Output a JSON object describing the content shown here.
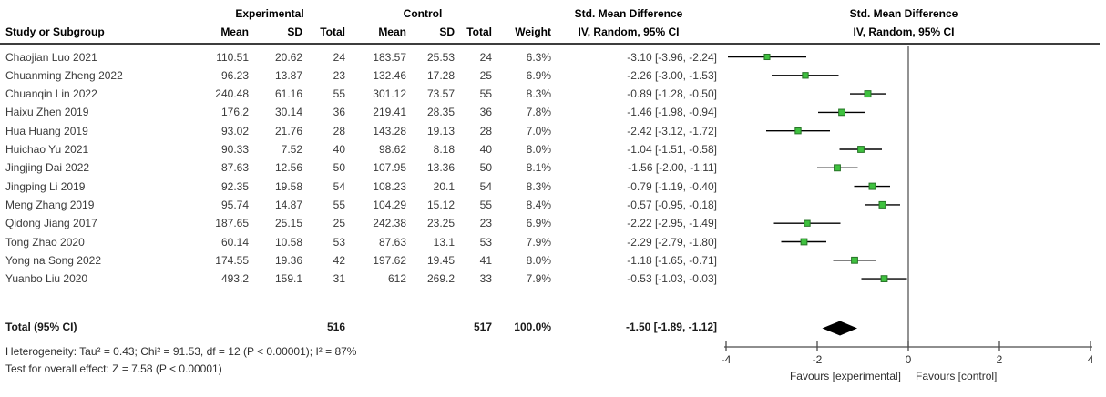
{
  "header": {
    "group_experimental": "Experimental",
    "group_control": "Control",
    "smd_left": "Std. Mean Difference",
    "smd_right": "Std. Mean Difference",
    "col_study": "Study or Subgroup",
    "col_mean_exp": "Mean",
    "col_sd_exp": "SD",
    "col_total_exp": "Total",
    "col_mean_ctl": "Mean",
    "col_sd_ctl": "SD",
    "col_total_ctl": "Total",
    "col_weight": "Weight",
    "ci_method_left": "IV, Random, 95% CI",
    "ci_method_right": "IV, Random, 95% CI"
  },
  "footer": {
    "heterogeneity": "Heterogeneity: Tau² = 0.43; Chi² = 91.53, df = 12 (P < 0.00001); I² = 87%",
    "overall_effect": "Test for overall effect: Z = 7.58 (P < 0.00001)"
  },
  "chart_data": {
    "type": "forest",
    "effect_measure": "Std. Mean Difference",
    "model": "IV, Random, 95% CI",
    "studies": [
      {
        "name": "Chaojian Luo 2021",
        "exp_mean": "110.51",
        "exp_sd": "20.62",
        "exp_total": "24",
        "ctl_mean": "183.57",
        "ctl_sd": "25.53",
        "ctl_total": "24",
        "weight": "6.3%",
        "weight_pct": 6.3,
        "ci_text": "-3.10 [-3.96, -2.24]",
        "est": -3.1,
        "lo": -3.96,
        "hi": -2.24
      },
      {
        "name": "Chuanming Zheng 2022",
        "exp_mean": "96.23",
        "exp_sd": "13.87",
        "exp_total": "23",
        "ctl_mean": "132.46",
        "ctl_sd": "17.28",
        "ctl_total": "25",
        "weight": "6.9%",
        "weight_pct": 6.9,
        "ci_text": "-2.26 [-3.00, -1.53]",
        "est": -2.26,
        "lo": -3.0,
        "hi": -1.53
      },
      {
        "name": "Chuanqin Lin 2022",
        "exp_mean": "240.48",
        "exp_sd": "61.16",
        "exp_total": "55",
        "ctl_mean": "301.12",
        "ctl_sd": "73.57",
        "ctl_total": "55",
        "weight": "8.3%",
        "weight_pct": 8.3,
        "ci_text": "-0.89 [-1.28, -0.50]",
        "est": -0.89,
        "lo": -1.28,
        "hi": -0.5
      },
      {
        "name": "Haixu Zhen 2019",
        "exp_mean": "176.2",
        "exp_sd": "30.14",
        "exp_total": "36",
        "ctl_mean": "219.41",
        "ctl_sd": "28.35",
        "ctl_total": "36",
        "weight": "7.8%",
        "weight_pct": 7.8,
        "ci_text": "-1.46 [-1.98, -0.94]",
        "est": -1.46,
        "lo": -1.98,
        "hi": -0.94
      },
      {
        "name": "Hua Huang 2019",
        "exp_mean": "93.02",
        "exp_sd": "21.76",
        "exp_total": "28",
        "ctl_mean": "143.28",
        "ctl_sd": "19.13",
        "ctl_total": "28",
        "weight": "7.0%",
        "weight_pct": 7.0,
        "ci_text": "-2.42 [-3.12, -1.72]",
        "est": -2.42,
        "lo": -3.12,
        "hi": -1.72
      },
      {
        "name": "Huichao Yu 2021",
        "exp_mean": "90.33",
        "exp_sd": "7.52",
        "exp_total": "40",
        "ctl_mean": "98.62",
        "ctl_sd": "8.18",
        "ctl_total": "40",
        "weight": "8.0%",
        "weight_pct": 8.0,
        "ci_text": "-1.04 [-1.51, -0.58]",
        "est": -1.04,
        "lo": -1.51,
        "hi": -0.58
      },
      {
        "name": "Jingjing Dai 2022",
        "exp_mean": "87.63",
        "exp_sd": "12.56",
        "exp_total": "50",
        "ctl_mean": "107.95",
        "ctl_sd": "13.36",
        "ctl_total": "50",
        "weight": "8.1%",
        "weight_pct": 8.1,
        "ci_text": "-1.56 [-2.00, -1.11]",
        "est": -1.56,
        "lo": -2.0,
        "hi": -1.11
      },
      {
        "name": "Jingping Li 2019",
        "exp_mean": "92.35",
        "exp_sd": "19.58",
        "exp_total": "54",
        "ctl_mean": "108.23",
        "ctl_sd": "20.1",
        "ctl_total": "54",
        "weight": "8.3%",
        "weight_pct": 8.3,
        "ci_text": "-0.79 [-1.19, -0.40]",
        "est": -0.79,
        "lo": -1.19,
        "hi": -0.4
      },
      {
        "name": "Meng Zhang 2019",
        "exp_mean": "95.74",
        "exp_sd": "14.87",
        "exp_total": "55",
        "ctl_mean": "104.29",
        "ctl_sd": "15.12",
        "ctl_total": "55",
        "weight": "8.4%",
        "weight_pct": 8.4,
        "ci_text": "-0.57 [-0.95, -0.18]",
        "est": -0.57,
        "lo": -0.95,
        "hi": -0.18
      },
      {
        "name": "Qidong Jiang 2017",
        "exp_mean": "187.65",
        "exp_sd": "25.15",
        "exp_total": "25",
        "ctl_mean": "242.38",
        "ctl_sd": "23.25",
        "ctl_total": "23",
        "weight": "6.9%",
        "weight_pct": 6.9,
        "ci_text": "-2.22 [-2.95, -1.49]",
        "est": -2.22,
        "lo": -2.95,
        "hi": -1.49
      },
      {
        "name": "Tong Zhao 2020",
        "exp_mean": "60.14",
        "exp_sd": "10.58",
        "exp_total": "53",
        "ctl_mean": "87.63",
        "ctl_sd": "13.1",
        "ctl_total": "53",
        "weight": "7.9%",
        "weight_pct": 7.9,
        "ci_text": "-2.29 [-2.79, -1.80]",
        "est": -2.29,
        "lo": -2.79,
        "hi": -1.8
      },
      {
        "name": "Yong na Song 2022",
        "exp_mean": "174.55",
        "exp_sd": "19.36",
        "exp_total": "42",
        "ctl_mean": "197.62",
        "ctl_sd": "19.45",
        "ctl_total": "41",
        "weight": "8.0%",
        "weight_pct": 8.0,
        "ci_text": "-1.18 [-1.65, -0.71]",
        "est": -1.18,
        "lo": -1.65,
        "hi": -0.71
      },
      {
        "name": "Yuanbo Liu 2020",
        "exp_mean": "493.2",
        "exp_sd": "159.1",
        "exp_total": "31",
        "ctl_mean": "612",
        "ctl_sd": "269.2",
        "ctl_total": "33",
        "weight": "7.9%",
        "weight_pct": 7.9,
        "ci_text": "-0.53 [-1.03, -0.03]",
        "est": -0.53,
        "lo": -1.03,
        "hi": -0.03
      }
    ],
    "total": {
      "label": "Total (95% CI)",
      "exp_total": "516",
      "ctl_total": "517",
      "weight": "100.0%",
      "ci_text": "-1.50 [-1.89, -1.12]",
      "est": -1.5,
      "lo": -1.89,
      "hi": -1.12
    },
    "axis": {
      "min": -4,
      "max": 4,
      "ticks": [
        "-4",
        "-2",
        "0",
        "2",
        "4"
      ],
      "tick_values": [
        -4,
        -2,
        0,
        2,
        4
      ]
    },
    "favours_left": "Favours [experimental]",
    "favours_right": "Favours [control]",
    "colors": {
      "marker_fill": "#3fc13f",
      "marker_border": "#267326",
      "ci_line": "#000000",
      "diamond": "#000000",
      "axis": "#4a4a4a"
    }
  }
}
